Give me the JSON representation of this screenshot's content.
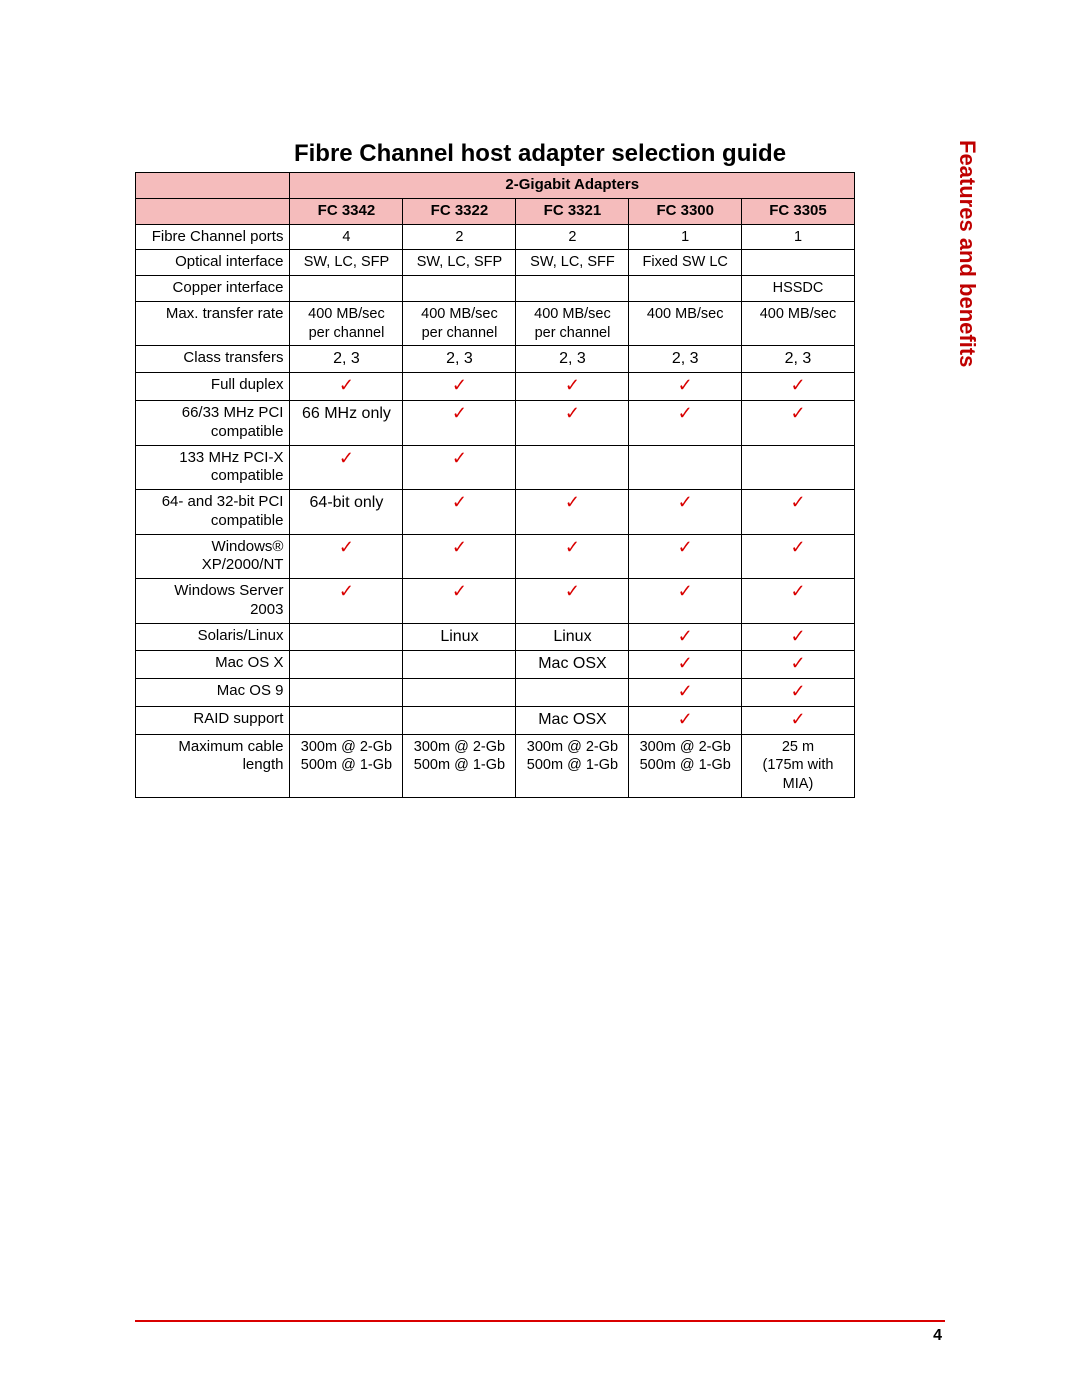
{
  "title": "Fibre Channel host adapter selection guide",
  "side_label": "Features and benefits",
  "page_number": "4",
  "colors": {
    "header_bg": "#f5bcbc",
    "tick": "#d90000",
    "rule": "#d90000",
    "side_label": "#bf0000"
  },
  "table": {
    "group_header": "2-Gigabit Adapters",
    "columns": [
      "FC 3342",
      "FC 3322",
      "FC 3321",
      "FC 3300",
      "FC 3305"
    ],
    "rows": [
      {
        "label": "Fibre Channel ports",
        "cells": [
          "4",
          "2",
          "2",
          "1",
          "1"
        ],
        "size": "small"
      },
      {
        "label": "Optical interface",
        "cells": [
          "SW, LC, SFP",
          "SW, LC, SFP",
          "SW, LC, SFF",
          "Fixed SW LC",
          ""
        ],
        "size": "small"
      },
      {
        "label": "Copper interface",
        "cells": [
          "",
          "",
          "",
          "",
          "HSSDC"
        ],
        "size": "small"
      },
      {
        "label": "Max. transfer rate",
        "cells": [
          "400 MB/sec per channel",
          "400 MB/sec per channel",
          "400 MB/sec per channel",
          "400 MB/sec",
          "400 MB/sec"
        ],
        "size": "small"
      },
      {
        "label": "Class transfers",
        "cells": [
          "2, 3",
          "2, 3",
          "2, 3",
          "2, 3",
          "2, 3"
        ],
        "size": "text"
      },
      {
        "label": "Full duplex",
        "cells": [
          "✓",
          "✓",
          "✓",
          "✓",
          "✓"
        ],
        "tick": [
          true,
          true,
          true,
          true,
          true
        ]
      },
      {
        "label": "66/33 MHz PCI compatible",
        "cells": [
          "66 MHz only",
          "✓",
          "✓",
          "✓",
          "✓"
        ],
        "tick": [
          false,
          true,
          true,
          true,
          true
        ],
        "size": "text"
      },
      {
        "label": "133 MHz PCI-X compatible",
        "cells": [
          "✓",
          "✓",
          "",
          "",
          ""
        ],
        "tick": [
          true,
          true,
          false,
          false,
          false
        ]
      },
      {
        "label": "64- and 32-bit PCI compatible",
        "cells": [
          "64-bit only",
          "✓",
          "✓",
          "✓",
          "✓"
        ],
        "tick": [
          false,
          true,
          true,
          true,
          true
        ],
        "size": "text"
      },
      {
        "label": "Windows® XP/2000/NT",
        "cells": [
          "✓",
          "✓",
          "✓",
          "✓",
          "✓"
        ],
        "tick": [
          true,
          true,
          true,
          true,
          true
        ]
      },
      {
        "label": "Windows Server 2003",
        "cells": [
          "✓",
          "✓",
          "✓",
          "✓",
          "✓"
        ],
        "tick": [
          true,
          true,
          true,
          true,
          true
        ]
      },
      {
        "label": "Solaris/Linux",
        "cells": [
          "",
          "Linux",
          "Linux",
          "✓",
          "✓"
        ],
        "tick": [
          false,
          false,
          false,
          true,
          true
        ],
        "size": "text"
      },
      {
        "label": "Mac OS X",
        "cells": [
          "",
          "",
          "Mac OSX",
          "✓",
          "✓"
        ],
        "tick": [
          false,
          false,
          false,
          true,
          true
        ],
        "size": "text"
      },
      {
        "label": "Mac OS 9",
        "cells": [
          "",
          "",
          "",
          "✓",
          "✓"
        ],
        "tick": [
          false,
          false,
          false,
          true,
          true
        ]
      },
      {
        "label": "RAID support",
        "cells": [
          "",
          "",
          "Mac OSX",
          "✓",
          "✓"
        ],
        "tick": [
          false,
          false,
          false,
          true,
          true
        ],
        "size": "text"
      },
      {
        "label": "Maximum cable length",
        "cells": [
          "300m @ 2-Gb\n500m @ 1-Gb",
          "300m @ 2-Gb\n500m @ 1-Gb",
          "300m @ 2-Gb\n500m @ 1-Gb",
          "300m @ 2-Gb\n500m @ 1-Gb",
          "25 m\n(175m with MIA)"
        ],
        "size": "small",
        "multiline": true
      }
    ]
  }
}
